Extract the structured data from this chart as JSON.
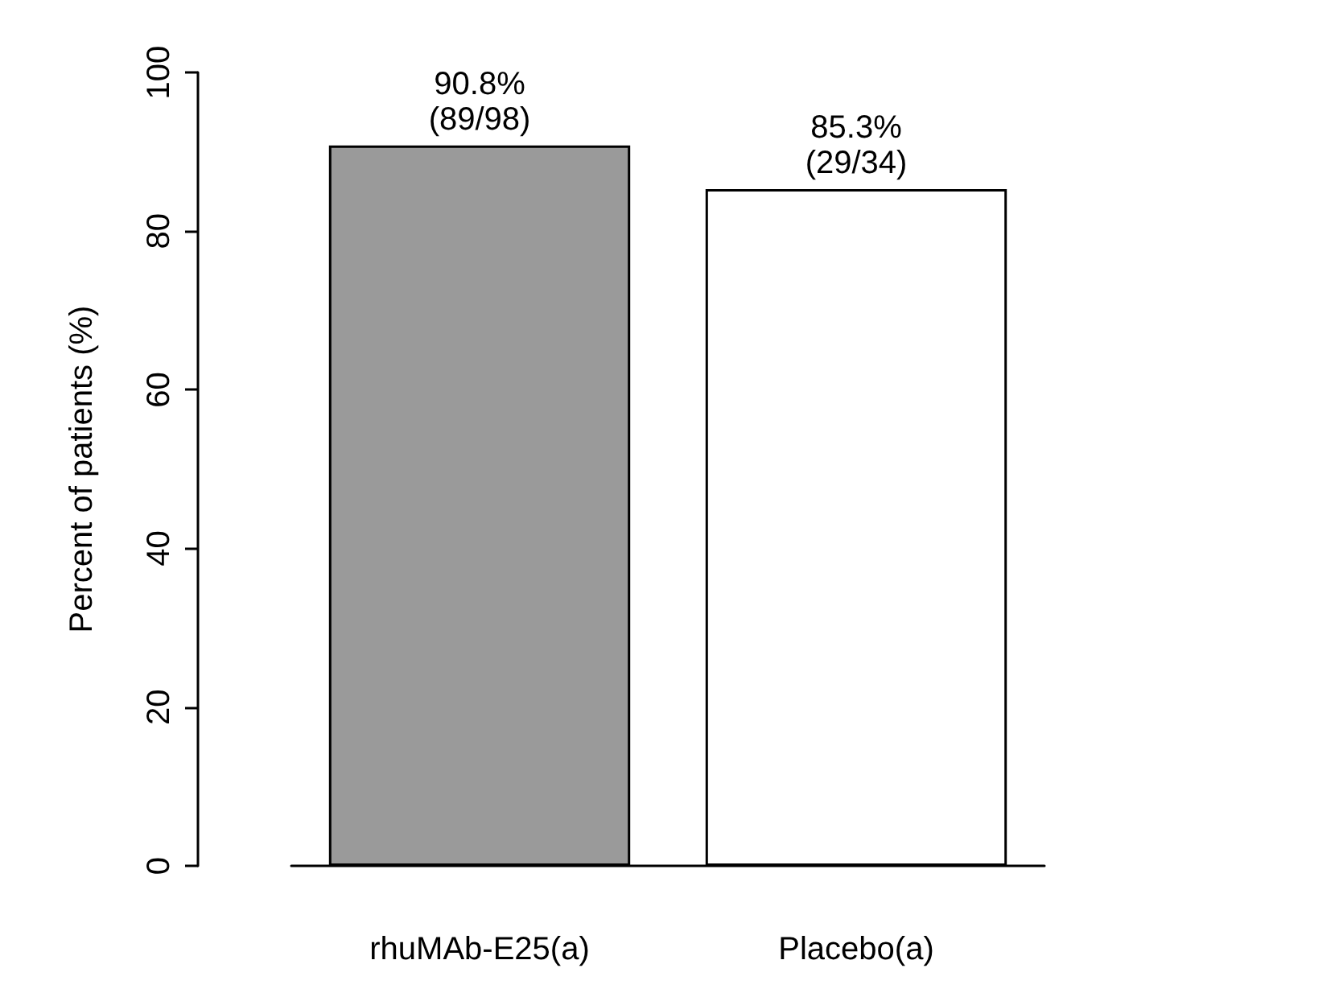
{
  "chart_data": {
    "type": "bar",
    "ylabel": "Percent of patients (%)",
    "categories": [
      "rhuMAb-E25(a)",
      "Placebo(a)"
    ],
    "values": [
      90.8,
      85.3
    ],
    "colors": [
      "#9a9a9a",
      "#ffffff"
    ],
    "value_labels": [
      "90.8%\n(89/98)",
      "85.3%\n(29/34)"
    ],
    "ylim": [
      0,
      100
    ],
    "yticks": [
      0,
      20,
      40,
      60,
      80,
      100
    ],
    "grid": false
  }
}
